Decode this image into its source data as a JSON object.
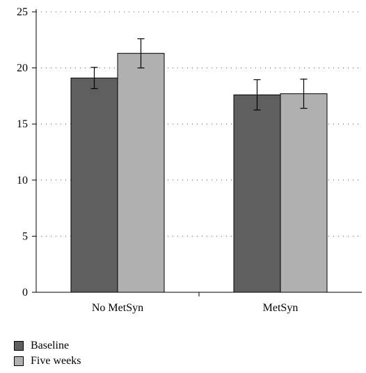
{
  "chart_data": {
    "type": "bar",
    "categories": [
      "No MetSyn",
      "MetSyn"
    ],
    "series": [
      {
        "name": "Baseline",
        "values": [
          19.1,
          17.6
        ],
        "error": [
          0.95,
          1.35
        ],
        "color": "#5f5f5f"
      },
      {
        "name": "Five weeks",
        "values": [
          21.3,
          17.7
        ],
        "error": [
          1.3,
          1.3
        ],
        "color": "#b0b0b0"
      }
    ],
    "ylim": [
      0,
      25
    ],
    "yticks": [
      "0",
      "5",
      "10",
      "15",
      "20",
      "25"
    ],
    "grid": "dotted horizontal",
    "legend_position": "bottom-left"
  }
}
